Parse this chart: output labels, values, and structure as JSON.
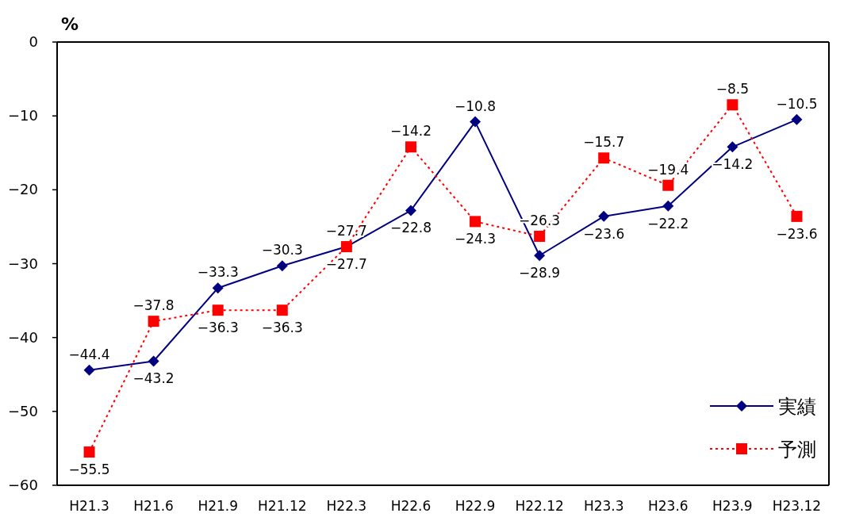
{
  "chart_data": {
    "type": "line",
    "ylabel": "%",
    "categories": [
      "H21.3",
      "H21.6",
      "H21.9",
      "H21.12",
      "H22.3",
      "H22.6",
      "H22.9",
      "H22.12",
      "H23.3",
      "H23.6",
      "H23.9",
      "H23.12"
    ],
    "series": [
      {
        "name": "実績",
        "color": "#000080",
        "marker": "diamond",
        "line_style": "solid",
        "values": [
          -44.4,
          -43.2,
          -33.3,
          -30.3,
          -27.7,
          -22.8,
          -10.8,
          -28.9,
          -23.6,
          -22.2,
          -14.2,
          -10.5
        ]
      },
      {
        "name": "予測",
        "color": "#ff0000",
        "marker": "square",
        "line_style": "dotted",
        "values": [
          -55.5,
          -37.8,
          -36.3,
          -36.3,
          -27.7,
          -14.2,
          -24.3,
          -26.3,
          -15.7,
          -19.4,
          -8.5,
          -23.6
        ]
      }
    ],
    "ylim": [
      -60,
      0
    ],
    "yticks": [
      0,
      -10,
      -20,
      -30,
      -40,
      -50,
      -60
    ],
    "grid": false,
    "legend": "bottom right",
    "data_labels": true
  }
}
